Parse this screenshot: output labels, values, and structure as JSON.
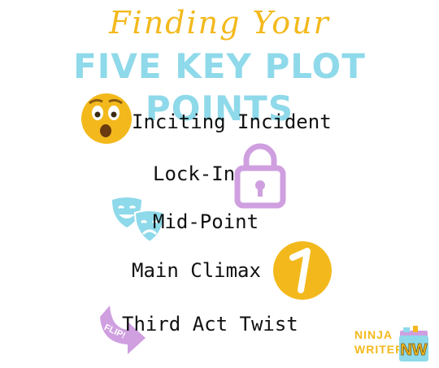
{
  "header": {
    "script_line": "Finding Your",
    "main_line": "FIVE KEY PLOT POINTS"
  },
  "plot_points": [
    {
      "label": "Inciting Incident",
      "icon": "shocked-face-icon"
    },
    {
      "label": "Lock-In",
      "icon": "padlock-icon"
    },
    {
      "label": "Mid-Point",
      "icon": "theater-masks-icon"
    },
    {
      "label": "Main Climax",
      "icon": "number-one-icon"
    },
    {
      "label": "Third Act Twist",
      "icon": "flip-arrow-icon"
    }
  ],
  "flip_badge": "FLIP!",
  "brand": {
    "line1": "NINJA",
    "line2": "WRITERS",
    "logo_text": "NW"
  },
  "colors": {
    "gold": "#f3b91c",
    "teal": "#8ed9ea",
    "purple": "#cf9fe0",
    "text": "#111111"
  }
}
